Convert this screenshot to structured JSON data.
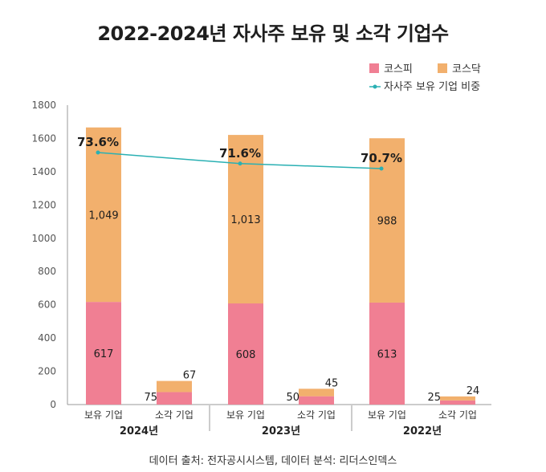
{
  "title": "2022-2024년 자사주 보유 및 소각 기업수",
  "source": "데이터 출처: 전자공시시스템, 데이터 분석: 리더스인덱스",
  "colors": {
    "kospi": "#f07f93",
    "kosdaq": "#f2b06d",
    "line": "#2ab0b3",
    "axis": "#999999"
  },
  "chart_data": {
    "type": "bar",
    "stacked": true,
    "ylim": [
      0,
      1800
    ],
    "yticks": [
      0,
      200,
      400,
      600,
      800,
      1000,
      1200,
      1400,
      1600,
      1800
    ],
    "categories": [
      "보유 기업",
      "소각 기업",
      "보유 기업",
      "소각 기업",
      "보유 기업",
      "소각 기업"
    ],
    "groups": [
      "2024년",
      "2023년",
      "2022년"
    ],
    "series": [
      {
        "name": "코스피",
        "values": [
          617,
          75,
          608,
          50,
          613,
          25
        ]
      },
      {
        "name": "코스닥",
        "values": [
          1049,
          67,
          1013,
          45,
          988,
          24
        ]
      }
    ],
    "line": {
      "name": "자사주 보유 기업 비중",
      "labels": [
        "73.6%",
        "71.6%",
        "70.7%"
      ],
      "values": [
        73.6,
        71.6,
        70.7
      ]
    },
    "legend": [
      "코스피",
      "코스닥",
      "자사주 보유 기업 비중"
    ],
    "legend_position": "top-right"
  }
}
